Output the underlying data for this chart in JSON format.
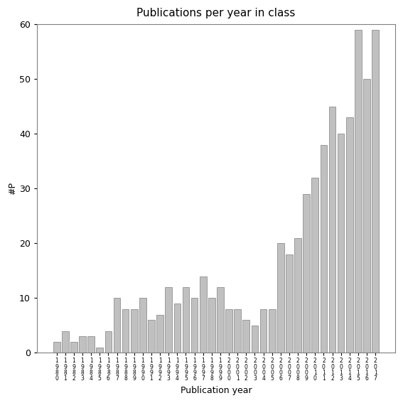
{
  "title": "Publications per year in class",
  "xlabel": "Publication year",
  "ylabel": "#P",
  "ylim": [
    0,
    60
  ],
  "yticks": [
    0,
    10,
    20,
    30,
    40,
    50,
    60
  ],
  "years": [
    1980,
    1981,
    1982,
    1983,
    1984,
    1985,
    1986,
    1987,
    1988,
    1989,
    1990,
    1991,
    1992,
    1993,
    1994,
    1995,
    1996,
    1997,
    1998,
    1999,
    2000,
    2001,
    2002,
    2003,
    2004,
    2005,
    2006,
    2007,
    2008,
    2009,
    2010,
    2011,
    2012,
    2013,
    2014,
    2015,
    2016,
    2017
  ],
  "values": [
    2,
    4,
    2,
    3,
    3,
    1,
    4,
    10,
    8,
    8,
    10,
    6,
    7,
    12,
    9,
    12,
    10,
    14,
    10,
    12,
    8,
    8,
    6,
    5,
    8,
    8,
    20,
    18,
    21,
    29,
    32,
    38,
    45,
    40,
    43,
    59,
    50,
    59
  ],
  "bar_color": "#c0c0c0",
  "bar_edge_color": "#808080",
  "background_color": "#ffffff",
  "title_fontsize": 11,
  "axis_label_fontsize": 9,
  "tick_label_fontsize": 5.5
}
